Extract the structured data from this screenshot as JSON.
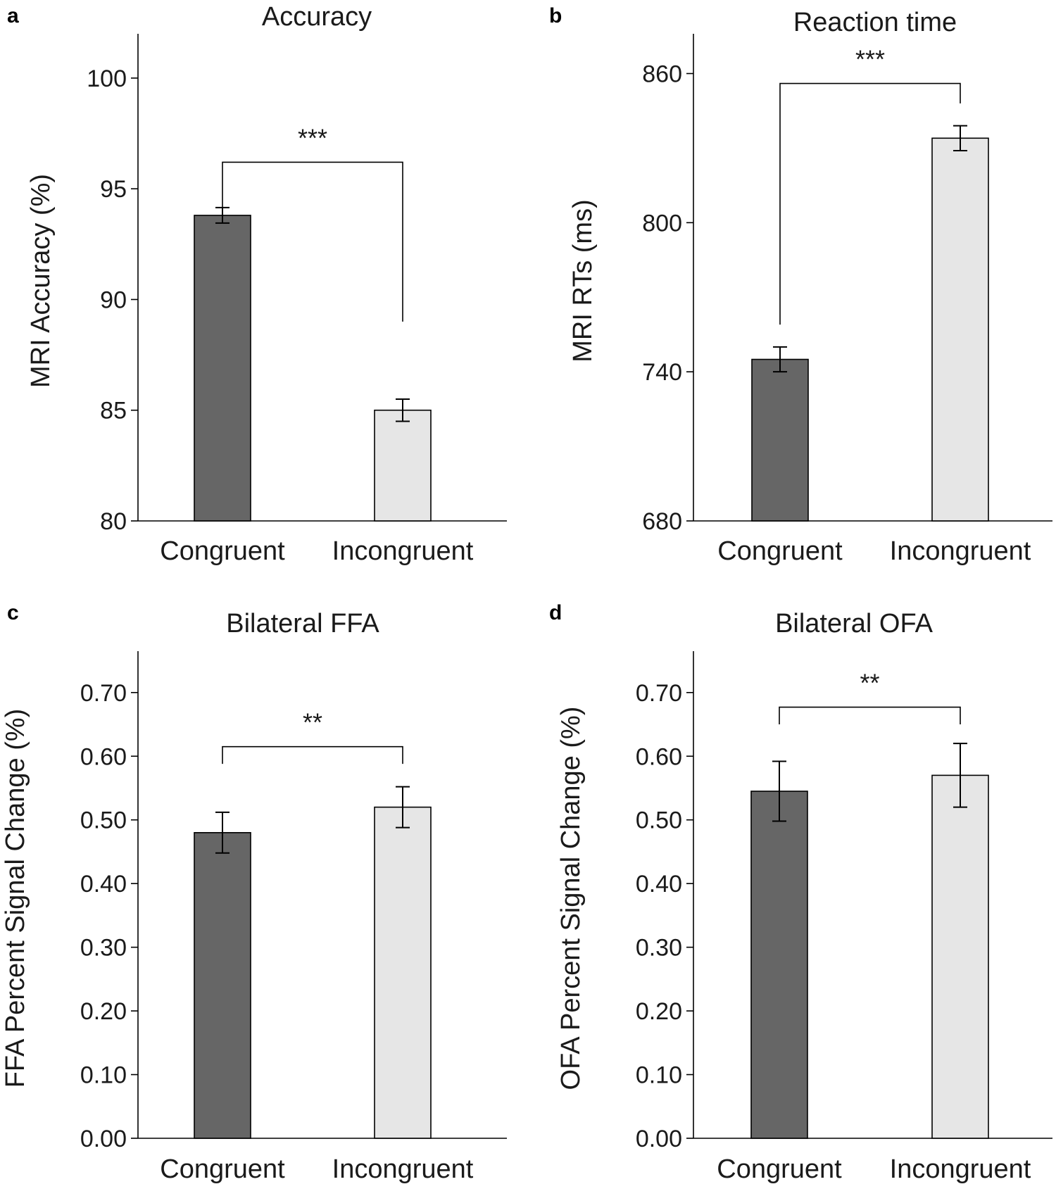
{
  "chart_data": [
    {
      "panel": "a",
      "type": "bar",
      "title": "Accuracy",
      "ylabel": "MRI Accuracy (%)",
      "xlabel": "",
      "categories": [
        "Congruent",
        "Incongruent"
      ],
      "values": [
        93.8,
        85.0
      ],
      "errors": [
        0.35,
        0.5
      ],
      "colors": [
        "#666666",
        "#e6e6e6"
      ],
      "ylim": [
        80,
        102
      ],
      "yticks": [
        80,
        85,
        90,
        95,
        100
      ],
      "ytick_labels": [
        "80",
        "85",
        "90",
        "95",
        "100"
      ],
      "significance": {
        "label": "***",
        "bracket_y": 96.2,
        "left_drop": 94.1,
        "right_drop": 89.0
      }
    },
    {
      "panel": "b",
      "type": "bar",
      "title": "Reaction time",
      "ylabel": "MRI RTs (ms)",
      "xlabel": "",
      "categories": [
        "Congruent",
        "Incongruent"
      ],
      "values": [
        745,
        834
      ],
      "errors": [
        5,
        5
      ],
      "colors": [
        "#666666",
        "#e6e6e6"
      ],
      "ylim": [
        680,
        876
      ],
      "yticks": [
        680,
        740,
        800,
        860
      ],
      "ytick_labels": [
        "680",
        "740",
        "800",
        "860"
      ],
      "significance": {
        "label": "***",
        "bracket_y": 856,
        "left_drop": 759,
        "right_drop": 848
      }
    },
    {
      "panel": "c",
      "type": "bar",
      "title": "Bilateral FFA",
      "ylabel": "FFA Percent Signal Change (%)",
      "xlabel": "",
      "categories": [
        "Congruent",
        "Incongruent"
      ],
      "values": [
        0.48,
        0.52
      ],
      "errors": [
        0.032,
        0.032
      ],
      "colors": [
        "#666666",
        "#e6e6e6"
      ],
      "ylim": [
        0,
        0.765
      ],
      "yticks": [
        0,
        0.1,
        0.2,
        0.3,
        0.4,
        0.5,
        0.6,
        0.7
      ],
      "ytick_labels": [
        "0.00",
        "0.10",
        "0.20",
        "0.30",
        "0.40",
        "0.50",
        "0.60",
        "0.70"
      ],
      "significance": {
        "label": "**",
        "bracket_y": 0.615,
        "left_drop": 0.588,
        "right_drop": 0.588
      }
    },
    {
      "panel": "d",
      "type": "bar",
      "title": "Bilateral OFA",
      "ylabel": "OFA Percent Signal Change (%)",
      "xlabel": "",
      "categories": [
        "Congruent",
        "Incongruent"
      ],
      "values": [
        0.545,
        0.57
      ],
      "errors": [
        0.047,
        0.05
      ],
      "colors": [
        "#666666",
        "#e6e6e6"
      ],
      "ylim": [
        0,
        0.765
      ],
      "yticks": [
        0,
        0.1,
        0.2,
        0.3,
        0.4,
        0.5,
        0.6,
        0.7
      ],
      "ytick_labels": [
        "0.00",
        "0.10",
        "0.20",
        "0.30",
        "0.40",
        "0.50",
        "0.60",
        "0.70"
      ],
      "significance": {
        "label": "**",
        "bracket_y": 0.677,
        "left_drop": 0.65,
        "right_drop": 0.65
      }
    }
  ]
}
